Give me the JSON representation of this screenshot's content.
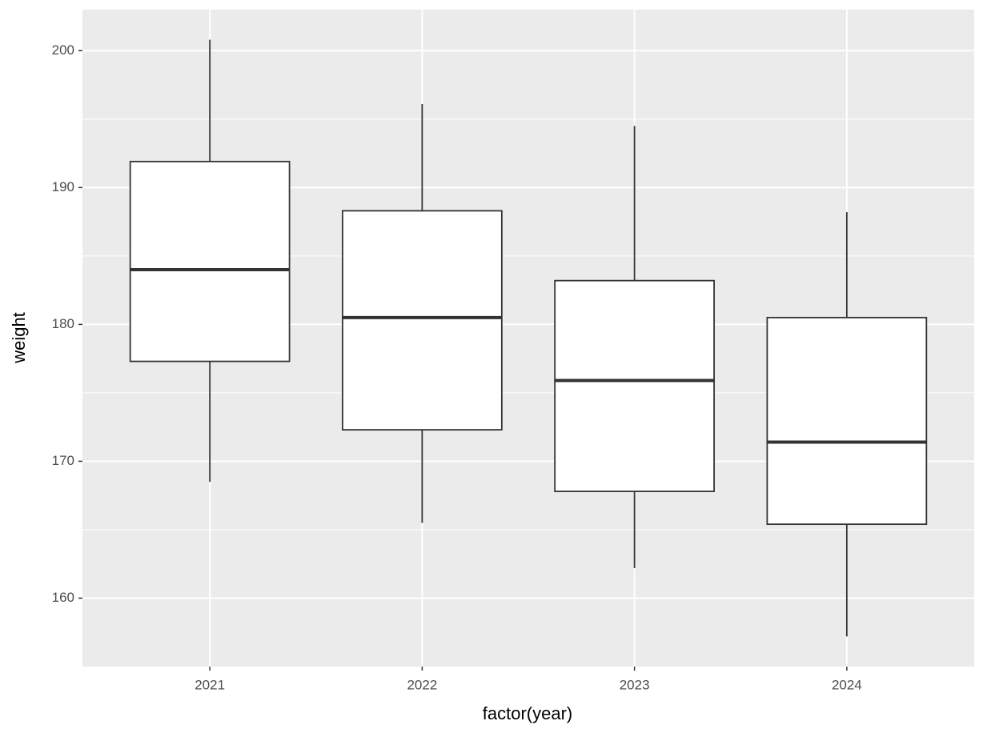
{
  "chart_data": {
    "type": "boxplot",
    "x_label": "factor(year)",
    "y_label": "weight",
    "categories": [
      "2021",
      "2022",
      "2023",
      "2024"
    ],
    "boxes": [
      {
        "whisker_low": 168.5,
        "q1": 177.3,
        "median": 184.0,
        "q3": 191.9,
        "whisker_high": 200.8
      },
      {
        "whisker_low": 165.5,
        "q1": 172.3,
        "median": 180.5,
        "q3": 188.3,
        "whisker_high": 196.1
      },
      {
        "whisker_low": 162.2,
        "q1": 167.8,
        "median": 175.9,
        "q3": 183.2,
        "whisker_high": 194.5
      },
      {
        "whisker_low": 157.2,
        "q1": 165.4,
        "median": 171.4,
        "q3": 180.5,
        "whisker_high": 188.2
      }
    ],
    "box_fill": "#ffffff",
    "line_color": "#333333",
    "panel_color": "#ebebeb",
    "ylim": [
      155.0,
      203.0
    ],
    "yticks": [
      160,
      170,
      180,
      190,
      200
    ],
    "minor_yticks": [
      165,
      175,
      185,
      195
    ],
    "grid": true
  }
}
